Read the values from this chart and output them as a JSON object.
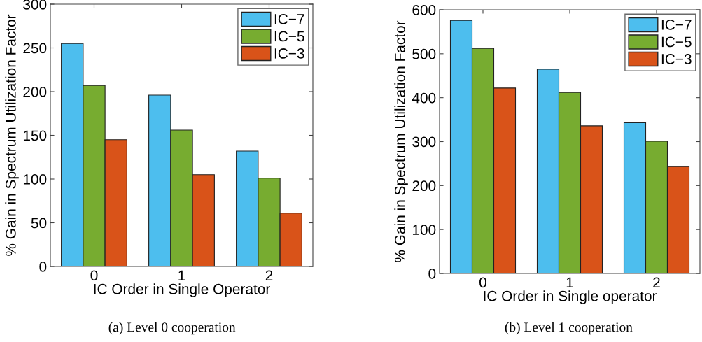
{
  "chart_data": [
    {
      "type": "bar",
      "categories": [
        "0",
        "1",
        "2"
      ],
      "xlabel": "IC Order in Single Operator",
      "ylabel": "% Gain in Spectrum Utilization Factor",
      "ylim": [
        0,
        300
      ],
      "yticks": [
        0,
        50,
        100,
        150,
        200,
        250,
        300
      ],
      "grid": false,
      "legend": "top right",
      "annotations": [
        "(a) Level 0 cooperation"
      ],
      "series": [
        {
          "name": "IC−7",
          "color": "#4dbeee",
          "values": [
            255,
            196,
            132
          ]
        },
        {
          "name": "IC−5",
          "color": "#77ac30",
          "values": [
            207,
            156,
            101
          ]
        },
        {
          "name": "IC−3",
          "color": "#d95319",
          "values": [
            145,
            105,
            61
          ]
        }
      ]
    },
    {
      "type": "bar",
      "categories": [
        "0",
        "1",
        "2"
      ],
      "xlabel": "IC Order in Single operator",
      "ylabel": "% Gain in Spectrum Utilization Factor",
      "ylim": [
        0,
        600
      ],
      "yticks": [
        0,
        100,
        200,
        300,
        400,
        500,
        600
      ],
      "grid": false,
      "legend": "top right",
      "annotations": [
        "(b) Level 1 cooperation"
      ],
      "series": [
        {
          "name": "IC−7",
          "color": "#4dbeee",
          "values": [
            576,
            465,
            343
          ]
        },
        {
          "name": "IC−5",
          "color": "#77ac30",
          "values": [
            512,
            412,
            301
          ]
        },
        {
          "name": "IC−3",
          "color": "#d95319",
          "values": [
            422,
            336,
            243
          ]
        }
      ]
    }
  ]
}
